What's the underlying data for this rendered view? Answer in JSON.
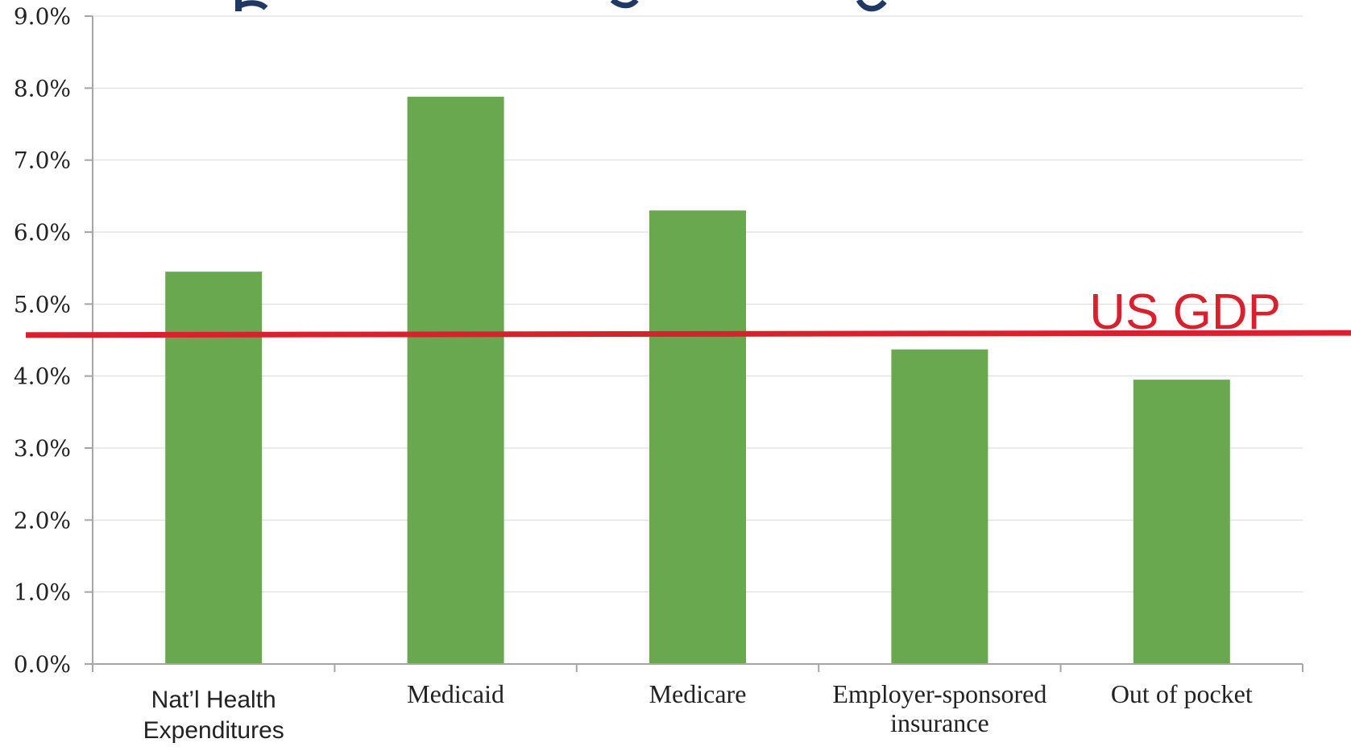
{
  "chart_data": {
    "type": "bar",
    "title": "",
    "xlabel": "",
    "ylabel": "",
    "categories": [
      [
        "Nat’l Health",
        "Expenditures"
      ],
      [
        "Medicaid"
      ],
      [
        "Medicare"
      ],
      [
        "Employer-sponsored",
        "insurance"
      ],
      [
        "Out of pocket"
      ]
    ],
    "values": [
      5.45,
      7.88,
      6.3,
      4.37,
      3.95
    ],
    "ylim": [
      0,
      9
    ],
    "y_ticks": [
      0,
      1,
      2,
      3,
      4,
      5,
      6,
      7,
      8,
      9
    ],
    "y_tick_labels": [
      "0.0%",
      "1.0%",
      "2.0%",
      "3.0%",
      "4.0%",
      "5.0%",
      "6.0%",
      "7.0%",
      "8.0%",
      "9.0%"
    ],
    "grid": true,
    "bar_color": "#6aa84f",
    "gridline_color": "#d9d9d9",
    "axis_color": "#a6a6a6",
    "reference_line": {
      "label": "US GDP",
      "value_start": 4.57,
      "value_end": 4.6,
      "color": "#d9212e"
    }
  }
}
